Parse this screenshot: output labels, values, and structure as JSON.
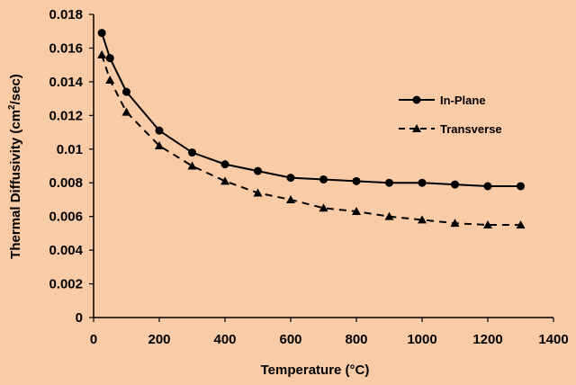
{
  "chart_data": {
    "type": "line",
    "title": "",
    "xlabel": "Temperature (°C)",
    "ylabel_parts": {
      "before": "Thermal Diffusivity (cm",
      "sup": "2",
      "after": "/sec)"
    },
    "xlim": [
      0,
      1400
    ],
    "ylim": [
      0,
      0.018
    ],
    "x_ticks": [
      0,
      200,
      400,
      600,
      800,
      1000,
      1200,
      1400
    ],
    "x_tick_labels": [
      "0",
      "200",
      "400",
      "600",
      "800",
      "1000",
      "1200",
      "1400"
    ],
    "y_ticks": [
      0,
      0.002,
      0.004,
      0.006,
      0.008,
      0.01,
      0.012,
      0.014,
      0.016,
      0.018
    ],
    "y_tick_labels": [
      "0",
      "0.002",
      "0.004",
      "0.006",
      "0.008",
      "0.01",
      "0.012",
      "0.014",
      "0.016",
      "0.018"
    ],
    "grid": false,
    "legend_position": "right",
    "series": [
      {
        "name": "In-Plane",
        "style": "solid",
        "marker": "circle",
        "color": "#000000",
        "x": [
          25,
          50,
          100,
          200,
          300,
          400,
          500,
          600,
          700,
          800,
          900,
          1000,
          1100,
          1200,
          1300
        ],
        "values": [
          0.0169,
          0.0154,
          0.0134,
          0.0111,
          0.0098,
          0.0091,
          0.0087,
          0.0083,
          0.0082,
          0.0081,
          0.008,
          0.008,
          0.0079,
          0.0078,
          0.0078
        ]
      },
      {
        "name": "Transverse",
        "style": "dashed",
        "marker": "triangle",
        "color": "#000000",
        "x": [
          25,
          50,
          100,
          200,
          300,
          400,
          500,
          600,
          700,
          800,
          900,
          1000,
          1100,
          1200,
          1300
        ],
        "values": [
          0.0156,
          0.0141,
          0.0122,
          0.0102,
          0.009,
          0.0081,
          0.0074,
          0.007,
          0.0065,
          0.0063,
          0.006,
          0.0058,
          0.0056,
          0.0055,
          0.0055
        ]
      }
    ]
  }
}
